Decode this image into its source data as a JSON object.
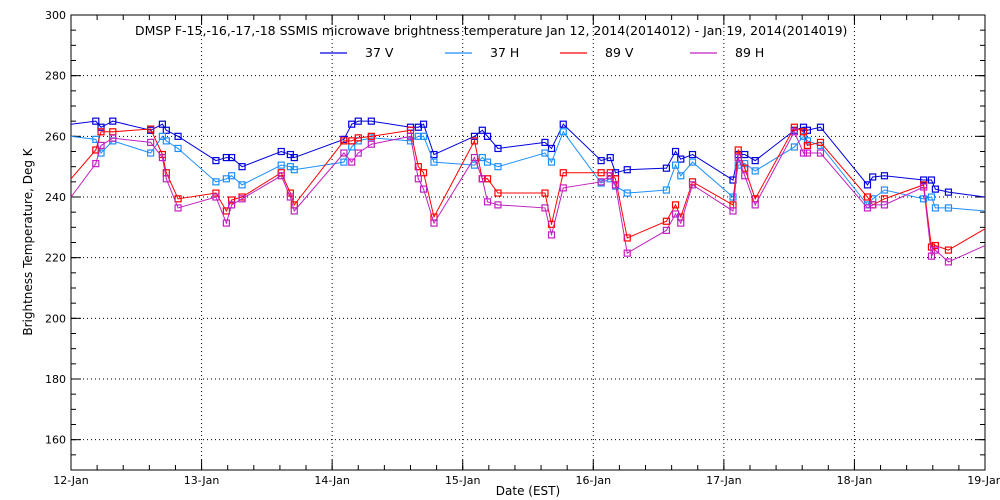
{
  "chart_data": {
    "type": "line",
    "title": "DMSP F-15,-16,-17,-18 SSMIS microwave brightness temperature Jan 12, 2014(2014012) - Jan 19, 2014(2014019)",
    "xlabel": "Date (EST)",
    "ylabel": "Brightness Temperature, Deg K",
    "ylim": [
      150,
      300
    ],
    "xlim_days_from_jan12": [
      0,
      7
    ],
    "yticks": [
      "160",
      "180",
      "200",
      "220",
      "240",
      "260",
      "280",
      "300"
    ],
    "xticks": [
      "12-Jan",
      "13-Jan",
      "14-Jan",
      "15-Jan",
      "16-Jan",
      "17-Jan",
      "18-Jan",
      "19-Jan"
    ],
    "grid": true,
    "legend_position": "top",
    "x": [
      0,
      0.19,
      0.23,
      0.32,
      0.61,
      0.7,
      0.73,
      0.82,
      1.11,
      1.19,
      1.23,
      1.31,
      1.61,
      1.68,
      1.71,
      2.09,
      2.15,
      2.2,
      2.3,
      2.6,
      2.66,
      2.7,
      2.78,
      3.09,
      3.15,
      3.19,
      3.27,
      3.63,
      3.68,
      3.77,
      4.06,
      4.13,
      4.17,
      4.26,
      4.56,
      4.63,
      4.67,
      4.76,
      5.07,
      5.11,
      5.16,
      5.24,
      5.54,
      5.61,
      5.64,
      5.74,
      6.1,
      6.14,
      6.23,
      6.53,
      6.59,
      6.62,
      6.72,
      7.0
    ],
    "series": [
      {
        "name": "37 V",
        "color": "#0000e0",
        "values": [
          264,
          265,
          263,
          265,
          262,
          264,
          262,
          260,
          252,
          253,
          253,
          250,
          255,
          254,
          253,
          259,
          264,
          265,
          265,
          263,
          263,
          264,
          254,
          260,
          262,
          260,
          256,
          258,
          256,
          264,
          252,
          253,
          248,
          249,
          249.5,
          255,
          252.5,
          254,
          245.6,
          254,
          254,
          252,
          262,
          263,
          262,
          263,
          244,
          246.6,
          247,
          245.6,
          245.6,
          242.6,
          241.6,
          240
        ]
      },
      {
        "name": "37 H",
        "color": "#1e90ff",
        "values": [
          260,
          259,
          254.5,
          258.5,
          254.5,
          260,
          258.5,
          256,
          245,
          246,
          247,
          244,
          250.5,
          250,
          249,
          251.5,
          256.5,
          258.5,
          259.5,
          258.5,
          260,
          260,
          251.5,
          250.5,
          253,
          251.5,
          250,
          254.5,
          251.5,
          261.5,
          244.6,
          246,
          243.6,
          241.3,
          242.3,
          250.5,
          247,
          251.5,
          240,
          250.5,
          251,
          248.6,
          256.5,
          260,
          258.5,
          257,
          237.4,
          239.4,
          242.3,
          239.4,
          240,
          236.4,
          236.4,
          235.4
        ]
      },
      {
        "name": "89 V",
        "color": "#ff0000",
        "values": [
          246,
          255.5,
          261.5,
          261.5,
          262.4,
          254,
          248,
          239.4,
          241.3,
          235.4,
          239,
          240,
          248,
          241.3,
          237.4,
          258.5,
          258.5,
          259.5,
          260,
          262,
          250,
          248,
          233.4,
          258.5,
          246,
          246,
          241.3,
          241.3,
          231,
          248,
          248,
          248,
          246,
          226.5,
          232,
          237.4,
          233.4,
          245,
          237.4,
          255.5,
          249.5,
          239.4,
          263,
          261.5,
          257,
          258,
          240,
          237.4,
          239.4,
          244,
          223.5,
          224,
          222.5,
          229.5
        ]
      },
      {
        "name": "89 H",
        "color": "#c020c0",
        "values": [
          240,
          251,
          257,
          259.4,
          258,
          253,
          246,
          236.4,
          240,
          231.4,
          237.4,
          239.4,
          247,
          240,
          235.4,
          254.5,
          251.5,
          254.5,
          257.4,
          260,
          246,
          242.6,
          231.4,
          253,
          246,
          238.4,
          237.4,
          236.4,
          227.5,
          243,
          245,
          247,
          244,
          221.5,
          229,
          234.4,
          231.4,
          244,
          235.4,
          253,
          247,
          237.4,
          261.5,
          254.5,
          254.5,
          254.5,
          236.4,
          237.4,
          237.4,
          243.3,
          220.5,
          222.5,
          218.6,
          224
        ]
      }
    ]
  }
}
